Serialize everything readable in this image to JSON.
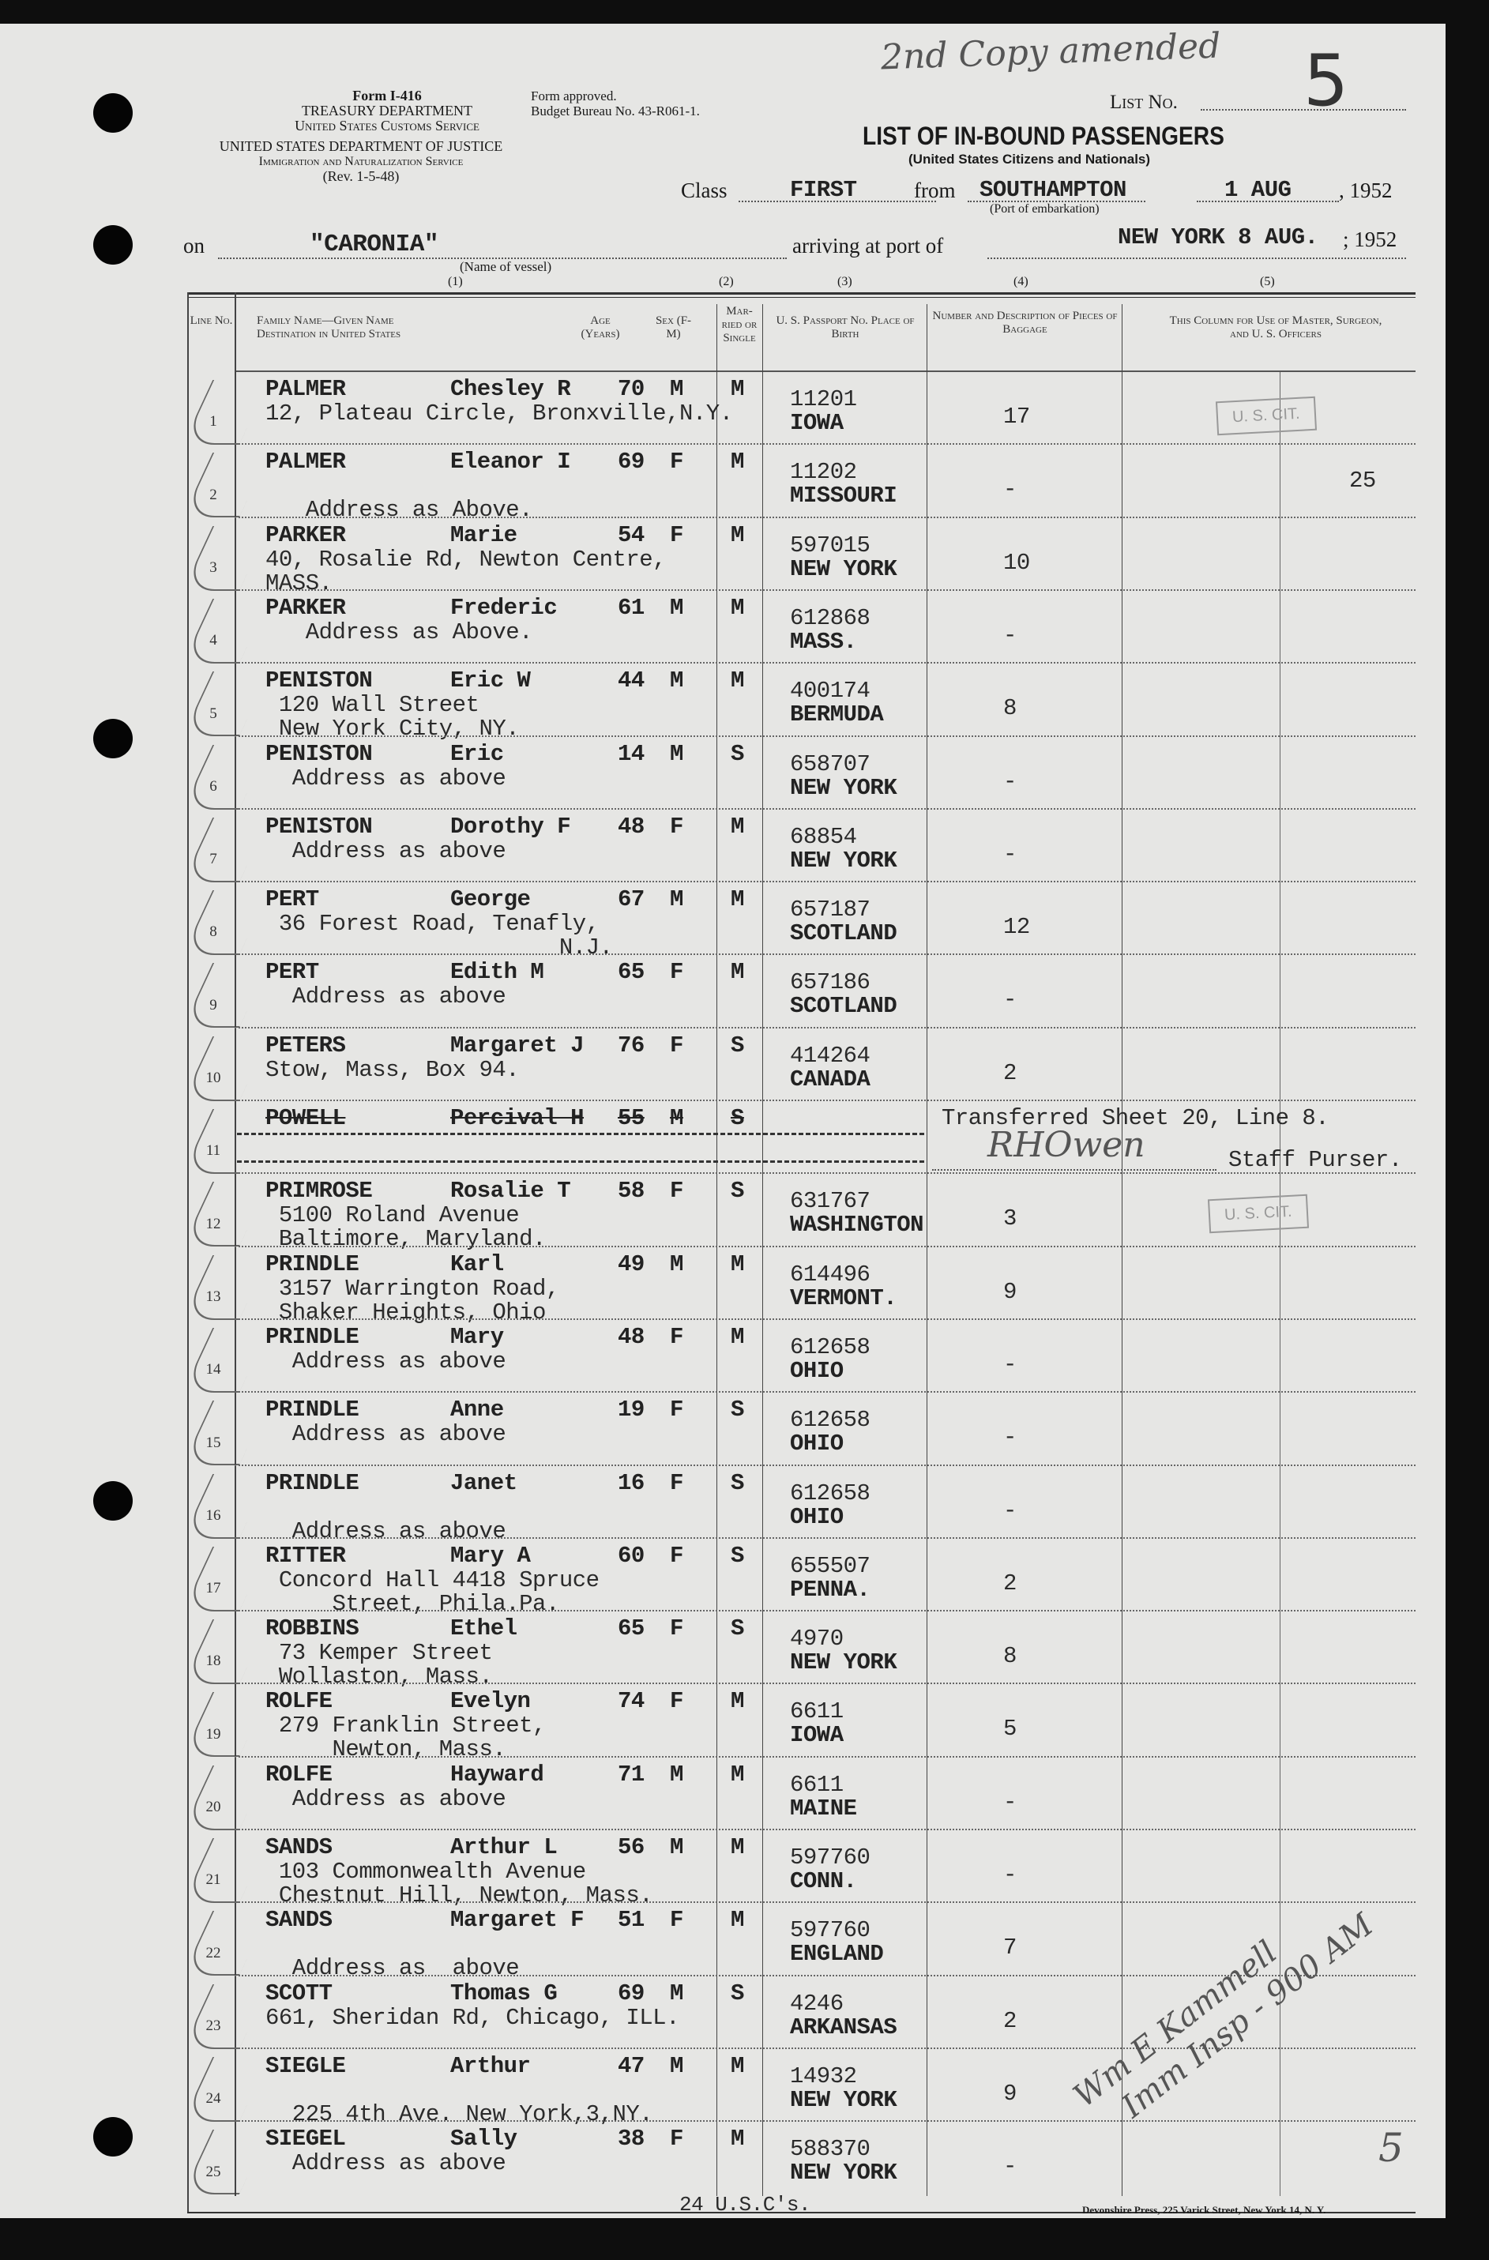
{
  "annotations": {
    "top_note": "2nd Copy amended",
    "list_number": "5"
  },
  "header": {
    "form_number": "Form I-416",
    "treasury": "TREASURY DEPARTMENT",
    "customs": "United States Customs Service",
    "approval_1": "Form approved.",
    "approval_2": "Budget Bureau No. 43-R061-1.",
    "justice": "UNITED STATES DEPARTMENT OF JUSTICE",
    "ins": "Immigration and Naturalization Service",
    "rev": "(Rev. 1-5-48)",
    "list_no_label": "List No.",
    "title": "LIST OF IN-BOUND PASSENGERS",
    "subtitle": "(United States Citizens and Nationals)",
    "class_label": "Class",
    "class_value": "FIRST",
    "from_label": "from",
    "port_embarkation": "SOUTHAMPTON",
    "port_embarkation_caption": "(Port of embarkation)",
    "departure_date": "1 AUG",
    "departure_year": ", 1952",
    "on_label": "on",
    "vessel": "\"CARONIA\"",
    "vessel_caption": "(Name of vessel)",
    "arriving_label": "arriving at port of",
    "arrival_port_date": "NEW YORK 8 AUG.",
    "arrival_year": "; 1952"
  },
  "columns": {
    "numbers": [
      "(1)",
      "(2)",
      "(3)",
      "(4)",
      "(5)"
    ],
    "line": "Line No.",
    "name": "Family Name—Given Name",
    "destination": "Destination in United States",
    "age": "Age (Years)",
    "sex": "Sex (F-M)",
    "married": "Mar-ried or Single",
    "passport": "U. S. Passport No. Place of Birth",
    "baggage": "Number and Description of Pieces of Baggage",
    "officers": "This Column for Use of Master, Surgeon, and U. S. Officers"
  },
  "rows": [
    {
      "line": "1",
      "surname": "PALMER",
      "given": "Chesley R",
      "age": "70",
      "sex": "M",
      "married": "M",
      "address": [
        "12, Plateau Circle, Bronxville,N.Y."
      ],
      "passport": "11201",
      "birthplace": "IOWA",
      "baggage": "17"
    },
    {
      "line": "2",
      "surname": "PALMER",
      "given": "Eleanor I",
      "age": "69",
      "sex": "F",
      "married": "M",
      "address": [
        "",
        "   Address as Above."
      ],
      "passport": "11202",
      "birthplace": "MISSOURI",
      "baggage": "-"
    },
    {
      "line": "3",
      "surname": "PARKER",
      "given": "Marie",
      "age": "54",
      "sex": "F",
      "married": "M",
      "address": [
        "40, Rosalie Rd, Newton Centre,",
        "MASS."
      ],
      "passport": "597015",
      "birthplace": "NEW YORK",
      "baggage": "10"
    },
    {
      "line": "4",
      "surname": "PARKER",
      "given": "Frederic",
      "age": "61",
      "sex": "M",
      "married": "M",
      "address": [
        "   Address as Above."
      ],
      "passport": "612868",
      "birthplace": "MASS.",
      "baggage": "-"
    },
    {
      "line": "5",
      "surname": "PENISTON",
      "given": "Eric W",
      "age": "44",
      "sex": "M",
      "married": "M",
      "address": [
        " 120 Wall Street",
        " New York City, NY."
      ],
      "passport": "400174",
      "birthplace": "BERMUDA",
      "baggage": "8"
    },
    {
      "line": "6",
      "surname": "PENISTON",
      "given": "Eric",
      "age": "14",
      "sex": "M",
      "married": "S",
      "address": [
        "  Address as above"
      ],
      "passport": "658707",
      "birthplace": "NEW YORK",
      "baggage": "-"
    },
    {
      "line": "7",
      "surname": "PENISTON",
      "given": "Dorothy F",
      "age": "48",
      "sex": "F",
      "married": "M",
      "address": [
        "  Address as above"
      ],
      "passport": "68854",
      "birthplace": "NEW YORK",
      "baggage": "-"
    },
    {
      "line": "8",
      "surname": "PERT",
      "given": "George",
      "age": "67",
      "sex": "M",
      "married": "M",
      "address": [
        " 36 Forest Road, Tenafly,",
        "                      N.J."
      ],
      "passport": "657187",
      "birthplace": "SCOTLAND",
      "baggage": "12"
    },
    {
      "line": "9",
      "surname": "PERT",
      "given": "Edith M",
      "age": "65",
      "sex": "F",
      "married": "M",
      "address": [
        "  Address as above"
      ],
      "passport": "657186",
      "birthplace": "SCOTLAND",
      "baggage": "-"
    },
    {
      "line": "10",
      "surname": "PETERS",
      "given": "Margaret J",
      "age": "76",
      "sex": "F",
      "married": "S",
      "address": [
        "Stow, Mass, Box 94."
      ],
      "passport": "414264",
      "birthplace": "CANADA",
      "baggage": "2"
    },
    {
      "line": "11",
      "surname": "POWELL",
      "given": "Percival H",
      "age": "55",
      "sex": "M",
      "married": "S",
      "address": [],
      "passport": "",
      "birthplace": "",
      "baggage": "",
      "struck": true,
      "note": "Transferred Sheet 20, Line 8.",
      "signature": "RHOwen",
      "note_title": "Staff Purser."
    },
    {
      "line": "12",
      "surname": "PRIMROSE",
      "given": "Rosalie T",
      "age": "58",
      "sex": "F",
      "married": "S",
      "address": [
        " 5100 Roland Avenue",
        " Baltimore, Maryland."
      ],
      "passport": "631767",
      "birthplace": "WASHINGTON",
      "baggage": "3"
    },
    {
      "line": "13",
      "surname": "PRINDLE",
      "given": "Karl",
      "age": "49",
      "sex": "M",
      "married": "M",
      "address": [
        " 3157 Warrington Road,",
        " Shaker Heights, Ohio"
      ],
      "passport": "614496",
      "birthplace": "VERMONT.",
      "baggage": "9"
    },
    {
      "line": "14",
      "surname": "PRINDLE",
      "given": "Mary",
      "age": "48",
      "sex": "F",
      "married": "M",
      "address": [
        "  Address as above"
      ],
      "passport": "612658",
      "birthplace": "OHIO",
      "baggage": "-"
    },
    {
      "line": "15",
      "surname": "PRINDLE",
      "given": "Anne",
      "age": "19",
      "sex": "F",
      "married": "S",
      "address": [
        "  Address as above"
      ],
      "passport": "612658",
      "birthplace": "OHIO",
      "baggage": "-"
    },
    {
      "line": "16",
      "surname": "PRINDLE",
      "given": "Janet",
      "age": "16",
      "sex": "F",
      "married": "S",
      "address": [
        "",
        "  Address as above"
      ],
      "passport": "612658",
      "birthplace": "OHIO",
      "baggage": "-"
    },
    {
      "line": "17",
      "surname": "RITTER",
      "given": "Mary A",
      "age": "60",
      "sex": "F",
      "married": "S",
      "address": [
        " Concord Hall 4418 Spruce",
        "     Street, Phila.Pa."
      ],
      "passport": "655507",
      "birthplace": "PENNA.",
      "baggage": "2"
    },
    {
      "line": "18",
      "surname": "ROBBINS",
      "given": "Ethel",
      "age": "65",
      "sex": "F",
      "married": "S",
      "address": [
        " 73 Kemper Street",
        " Wollaston, Mass."
      ],
      "passport": "4970",
      "birthplace": "NEW YORK",
      "baggage": "8"
    },
    {
      "line": "19",
      "surname": "ROLFE",
      "given": "Evelyn",
      "age": "74",
      "sex": "F",
      "married": "M",
      "address": [
        " 279 Franklin Street,",
        "     Newton, Mass."
      ],
      "passport": "6611",
      "birthplace": "IOWA",
      "baggage": "5"
    },
    {
      "line": "20",
      "surname": "ROLFE",
      "given": "Hayward",
      "age": "71",
      "sex": "M",
      "married": "M",
      "address": [
        "  Address as above"
      ],
      "passport": "6611",
      "birthplace": "MAINE",
      "baggage": "-"
    },
    {
      "line": "21",
      "surname": "SANDS",
      "given": "Arthur L",
      "age": "56",
      "sex": "M",
      "married": "M",
      "address": [
        " 103 Commonwealth Avenue",
        " Chestnut Hill, Newton, Mass."
      ],
      "passport": "597760",
      "birthplace": "CONN.",
      "baggage": "-"
    },
    {
      "line": "22",
      "surname": "SANDS",
      "given": "Margaret F",
      "age": "51",
      "sex": "F",
      "married": "M",
      "address": [
        "",
        "  Address as  above"
      ],
      "passport": "597760",
      "birthplace": "ENGLAND",
      "baggage": "7"
    },
    {
      "line": "23",
      "surname": "SCOTT",
      "given": "Thomas G",
      "age": "69",
      "sex": "M",
      "married": "S",
      "address": [
        "661, Sheridan Rd, Chicago, ILL."
      ],
      "passport": "4246",
      "birthplace": "ARKANSAS",
      "baggage": "2"
    },
    {
      "line": "24",
      "surname": "SIEGLE",
      "given": "Arthur",
      "age": "47",
      "sex": "M",
      "married": "M",
      "address": [
        "",
        "  225 4th Ave. New York,3,NY."
      ],
      "passport": "14932",
      "birthplace": "NEW YORK",
      "baggage": "9"
    },
    {
      "line": "25",
      "surname": "SIEGEL",
      "given": "Sally",
      "age": "38",
      "sex": "F",
      "married": "M",
      "address": [
        "  Address as above"
      ],
      "passport": "588370",
      "birthplace": "NEW YORK",
      "baggage": "-"
    }
  ],
  "officer_marks": {
    "stamp_1": "U. S. CIT.",
    "stamp_2": "U. S. CIT.",
    "count": "25",
    "inspector_line_1": "Wm E Kammell",
    "inspector_line_2": "Imm Insp - 900 AM",
    "page_mark": "5"
  },
  "footer": {
    "total": "24 U.S.C's.",
    "printer": "Devonshire Press, 225 Varick Street, New York 14, N. Y."
  }
}
